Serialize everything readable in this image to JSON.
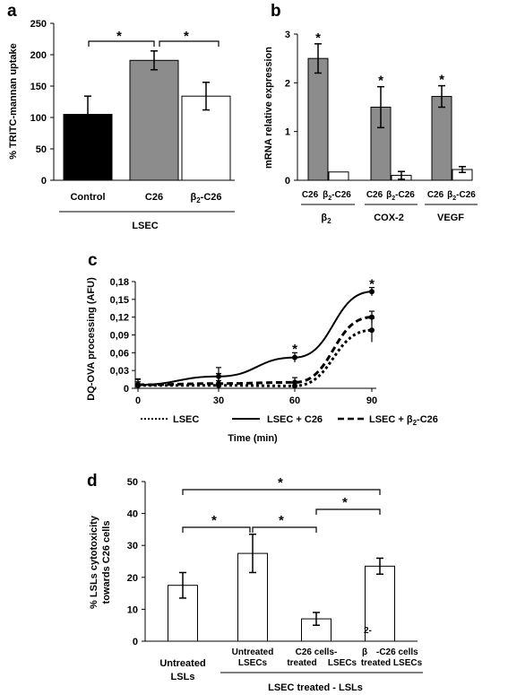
{
  "chart_data": [
    {
      "panel": "a",
      "type": "bar",
      "ylabel": "% TRITC-mannan uptake",
      "ylim": [
        0,
        250
      ],
      "yticks": [
        "0",
        "50",
        "100",
        "150",
        "200",
        "250"
      ],
      "categories": [
        "Control",
        "C26",
        "β2-C26"
      ],
      "values": [
        105,
        191,
        134
      ],
      "errors": [
        29,
        15,
        22
      ],
      "colors": [
        "#000000",
        "#8c8c8c",
        "#ffffff"
      ],
      "group_label": "LSEC",
      "significance": [
        "*",
        "*"
      ]
    },
    {
      "panel": "b",
      "type": "bar",
      "ylabel": "mRNA relative expression",
      "ylim": [
        0,
        3
      ],
      "yticks": [
        "0",
        "1",
        "2",
        "3"
      ],
      "groups": [
        {
          "name": "β2",
          "sub": [
            "C26",
            "β2-C26"
          ],
          "values": [
            2.5,
            0.17
          ],
          "errors": [
            0.3,
            0.0
          ],
          "star": "*"
        },
        {
          "name": "COX-2",
          "sub": [
            "C26",
            "β2-C26"
          ],
          "values": [
            1.5,
            0.1
          ],
          "errors": [
            0.42,
            0.08
          ],
          "star": "*"
        },
        {
          "name": "VEGF",
          "sub": [
            "C26",
            "β2-C26"
          ],
          "values": [
            1.72,
            0.22
          ],
          "errors": [
            0.22,
            0.06
          ],
          "star": "*"
        }
      ],
      "colors": [
        "#8c8c8c",
        "#ffffff"
      ]
    },
    {
      "panel": "c",
      "type": "line",
      "ylabel": "DQ-OVA processing (AFU)",
      "xlabel": "Time (min)",
      "x": [
        0,
        30,
        60,
        90
      ],
      "xticks": [
        "0",
        "30",
        "60",
        "90"
      ],
      "ylim": [
        0,
        0.18
      ],
      "yticks": [
        "0",
        "0,03",
        "0,06",
        "0,09",
        "0,12",
        "0,15",
        "0,18"
      ],
      "series": [
        {
          "name": "LSEC",
          "values": [
            0.005,
            0.005,
            0.004,
            0.098
          ],
          "errors": [
            0.01,
            0.02,
            0.005,
            0.02
          ],
          "dash": "3,3"
        },
        {
          "name": "LSEC + C26",
          "values": [
            0.006,
            0.02,
            0.052,
            0.163
          ],
          "errors": [
            0.01,
            0.015,
            0.008,
            0.007
          ],
          "dash": ""
        },
        {
          "name": "LSEC + β2-C26",
          "values": [
            0.006,
            0.008,
            0.01,
            0.12
          ],
          "errors": [
            0.005,
            0.005,
            0.008,
            0.01
          ],
          "dash": "7,4"
        }
      ],
      "stars": [
        {
          "x": 60,
          "y": 0.062,
          "t": "*"
        },
        {
          "x": 90,
          "y": 0.172,
          "t": "*"
        }
      ]
    },
    {
      "panel": "d",
      "type": "bar",
      "ylabel_lines": [
        "% LSLs cytotoxicity",
        "towards C26 cells"
      ],
      "ylim": [
        0,
        50
      ],
      "yticks": [
        "0",
        "10",
        "20",
        "30",
        "40",
        "50"
      ],
      "categories": [
        "Untreated LSLs",
        "Untreated LSECs",
        "C26 cells-treated LSECs",
        "β2-C26 cells treated LSECs"
      ],
      "values": [
        17.5,
        27.5,
        7,
        23.5
      ],
      "errors": [
        4,
        6,
        2,
        2.5
      ],
      "group_label": "LSEC treated - LSLs",
      "significance": [
        "*",
        "*",
        "*",
        "*"
      ]
    }
  ],
  "panel_labels": {
    "a": "a",
    "b": "b",
    "c": "c",
    "d": "d"
  },
  "a": {
    "group": "LSEC",
    "xt1": "Control",
    "xt2": "C26",
    "xt3_main": "β",
    "xt3_sub": "2",
    "xt3_tail": "-C26"
  },
  "b": {
    "g1_sub1": "C26",
    "g1_sub2a": "β",
    "g1_sub2b": "2",
    "g1_sub2c": "-C26",
    "g1_main": "β",
    "g1_main_sub": "2",
    "g2": "COX-2",
    "g3": "VEGF"
  },
  "c": {
    "leg1": "LSEC",
    "leg2": "LSEC + C26",
    "leg3a": "LSEC + β",
    "leg3b": "2",
    "leg3c": "-C26"
  },
  "d": {
    "xl1a": "Untreated",
    "xl1b": "LSLs",
    "xl2a": "Untreated",
    "xl2b": "LSECs",
    "xl3a": "C26 cells-",
    "xl3b": "treated",
    "xl3c": "LSECs",
    "xl4a": "β",
    "xl4b": "-C26 cells",
    "xl4c": "treated LSECs",
    "xl4sup": "2-",
    "group": "LSEC treated - LSLs"
  }
}
